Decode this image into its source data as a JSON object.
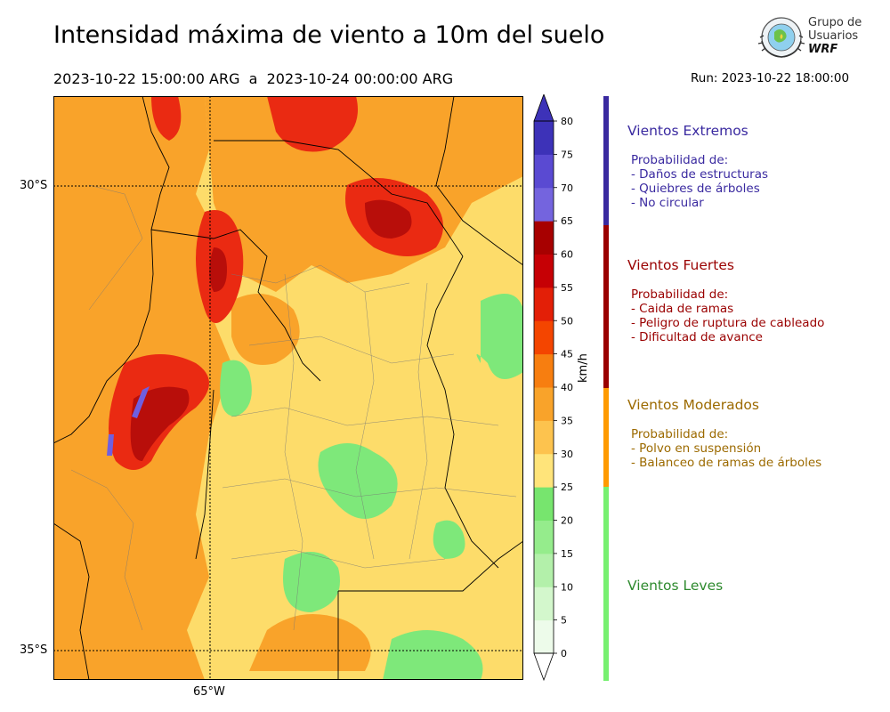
{
  "header": {
    "title": "Intensidad máxima de viento a 10m del suelo",
    "period": "2023-10-22 15:00:00 ARG  a  2023-10-24 00:00:00 ARG",
    "run": "Run: 2023-10-22 18:00:00"
  },
  "logo": {
    "line1": "Grupo de",
    "line2": "Usuarios",
    "line3": "WRF",
    "icon": "globe-emblem-icon"
  },
  "map": {
    "lat_labels": [
      "30°S",
      "35°S"
    ],
    "lon_labels": [
      "65°W"
    ],
    "colors": {
      "background": "#fddc6a",
      "leves": "#7ee87a",
      "moderado": "#f9a32a",
      "fuerte": "#ea2a12",
      "muy_fuerte": "#b80e0a",
      "extremo": "#6f5fe0"
    }
  },
  "colorbar": {
    "unit": "km/h",
    "ticks": [
      "0",
      "5",
      "10",
      "15",
      "20",
      "25",
      "30",
      "35",
      "40",
      "45",
      "50",
      "55",
      "60",
      "65",
      "70",
      "75",
      "80"
    ],
    "colors": [
      "#edfbea",
      "#d3f7cc",
      "#b3f0aa",
      "#95ec8c",
      "#77e56e",
      "#ffe47a",
      "#fdc34e",
      "#f9a32a",
      "#f77e10",
      "#f44500",
      "#e31f07",
      "#c60005",
      "#a70000",
      "#7464de",
      "#5a4ad2",
      "#3d32b8"
    ]
  },
  "categories": [
    {
      "title": "Vientos Extremos",
      "color": "#3a2aa0",
      "bar_color": "#3a2aa0",
      "lines": [
        "Probabilidad de:",
        "- Daños de estructuras",
        "- Quiebres de árboles",
        "- No circular"
      ]
    },
    {
      "title": "Vientos Fuertes",
      "color": "#9a0000",
      "bar_color": "#9a0000",
      "lines": [
        "Probabilidad de:",
        "- Caida de ramas",
        "- Peligro de ruptura de cableado",
        "- Dificultad de avance"
      ]
    },
    {
      "title": "Vientos Moderados",
      "color": "#9c6a00",
      "bar_color": "#ff9a00",
      "lines": [
        "Probabilidad de:",
        "- Polvo en suspensión",
        "- Balanceo de ramas de árboles"
      ]
    },
    {
      "title": "Vientos Leves",
      "color": "#2e8a2e",
      "bar_color": "#77f070",
      "lines": []
    }
  ]
}
